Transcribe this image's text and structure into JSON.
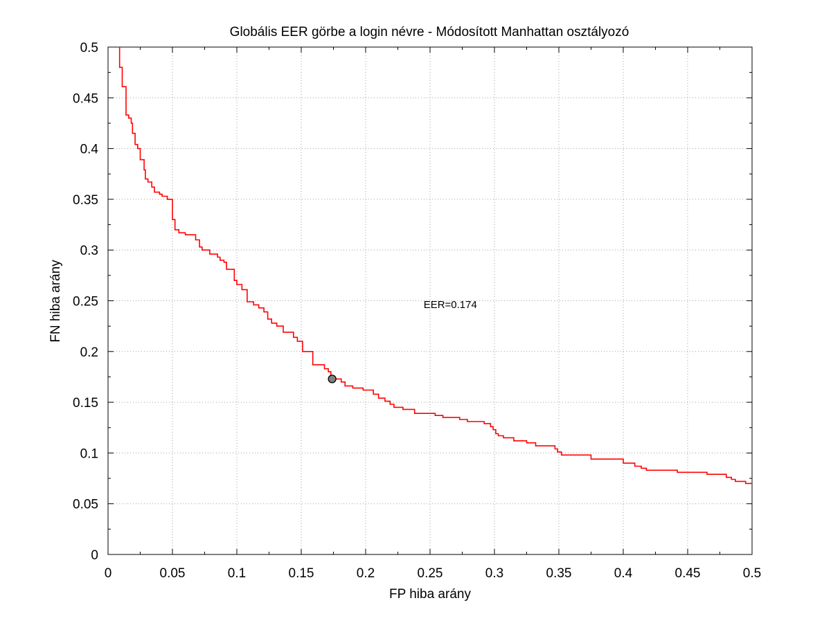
{
  "chart_data": {
    "type": "line",
    "title": "Globális EER görbe a login névre - Módosított Manhattan osztályozó",
    "xlabel": "FP hiba arány",
    "ylabel": "FN hiba arány",
    "xlim": [
      0,
      0.5
    ],
    "ylim": [
      0,
      0.5
    ],
    "grid": true,
    "xticks": [
      "0",
      "0.05",
      "0.1",
      "0.15",
      "0.2",
      "0.25",
      "0.3",
      "0.35",
      "0.4",
      "0.45",
      "0.5"
    ],
    "yticks": [
      "0",
      "0.05",
      "0.1",
      "0.15",
      "0.2",
      "0.25",
      "0.3",
      "0.35",
      "0.4",
      "0.45",
      "0.5"
    ],
    "colors": {
      "series": "#ff0000",
      "marker_fill": "#808080",
      "marker_edge": "#000000",
      "grid": "#a0a0a0"
    },
    "series": [
      {
        "style": "step",
        "points": [
          [
            0.009,
            0.5
          ],
          [
            0.009,
            0.48
          ],
          [
            0.011,
            0.48
          ],
          [
            0.011,
            0.461
          ],
          [
            0.014,
            0.461
          ],
          [
            0.014,
            0.433
          ],
          [
            0.016,
            0.433
          ],
          [
            0.016,
            0.43
          ],
          [
            0.018,
            0.43
          ],
          [
            0.018,
            0.425
          ],
          [
            0.019,
            0.425
          ],
          [
            0.019,
            0.415
          ],
          [
            0.021,
            0.415
          ],
          [
            0.021,
            0.404
          ],
          [
            0.023,
            0.404
          ],
          [
            0.023,
            0.4
          ],
          [
            0.025,
            0.4
          ],
          [
            0.025,
            0.389
          ],
          [
            0.028,
            0.389
          ],
          [
            0.028,
            0.379
          ],
          [
            0.029,
            0.379
          ],
          [
            0.029,
            0.37
          ],
          [
            0.031,
            0.37
          ],
          [
            0.031,
            0.367
          ],
          [
            0.034,
            0.367
          ],
          [
            0.034,
            0.362
          ],
          [
            0.036,
            0.362
          ],
          [
            0.036,
            0.357
          ],
          [
            0.04,
            0.357
          ],
          [
            0.04,
            0.355
          ],
          [
            0.042,
            0.355
          ],
          [
            0.042,
            0.353
          ],
          [
            0.046,
            0.353
          ],
          [
            0.046,
            0.35
          ],
          [
            0.05,
            0.35
          ],
          [
            0.05,
            0.33
          ],
          [
            0.052,
            0.33
          ],
          [
            0.052,
            0.32
          ],
          [
            0.055,
            0.32
          ],
          [
            0.055,
            0.317
          ],
          [
            0.06,
            0.317
          ],
          [
            0.06,
            0.315
          ],
          [
            0.068,
            0.315
          ],
          [
            0.068,
            0.31
          ],
          [
            0.071,
            0.31
          ],
          [
            0.071,
            0.303
          ],
          [
            0.073,
            0.303
          ],
          [
            0.073,
            0.3
          ],
          [
            0.079,
            0.3
          ],
          [
            0.079,
            0.296
          ],
          [
            0.085,
            0.296
          ],
          [
            0.085,
            0.293
          ],
          [
            0.087,
            0.293
          ],
          [
            0.087,
            0.29
          ],
          [
            0.09,
            0.29
          ],
          [
            0.09,
            0.288
          ],
          [
            0.092,
            0.288
          ],
          [
            0.092,
            0.281
          ],
          [
            0.098,
            0.281
          ],
          [
            0.098,
            0.27
          ],
          [
            0.1,
            0.27
          ],
          [
            0.1,
            0.266
          ],
          [
            0.104,
            0.266
          ],
          [
            0.104,
            0.261
          ],
          [
            0.108,
            0.261
          ],
          [
            0.108,
            0.249
          ],
          [
            0.113,
            0.249
          ],
          [
            0.113,
            0.246
          ],
          [
            0.117,
            0.246
          ],
          [
            0.117,
            0.243
          ],
          [
            0.121,
            0.243
          ],
          [
            0.121,
            0.239
          ],
          [
            0.124,
            0.239
          ],
          [
            0.124,
            0.232
          ],
          [
            0.127,
            0.232
          ],
          [
            0.127,
            0.228
          ],
          [
            0.131,
            0.228
          ],
          [
            0.131,
            0.225
          ],
          [
            0.136,
            0.225
          ],
          [
            0.136,
            0.219
          ],
          [
            0.144,
            0.219
          ],
          [
            0.144,
            0.214
          ],
          [
            0.147,
            0.214
          ],
          [
            0.147,
            0.21
          ],
          [
            0.151,
            0.21
          ],
          [
            0.151,
            0.2
          ],
          [
            0.159,
            0.2
          ],
          [
            0.159,
            0.187
          ],
          [
            0.168,
            0.187
          ],
          [
            0.168,
            0.183
          ],
          [
            0.171,
            0.183
          ],
          [
            0.171,
            0.18
          ],
          [
            0.173,
            0.18
          ],
          [
            0.173,
            0.174
          ],
          [
            0.174,
            0.174
          ],
          [
            0.174,
            0.173
          ],
          [
            0.181,
            0.173
          ],
          [
            0.181,
            0.17
          ],
          [
            0.184,
            0.17
          ],
          [
            0.184,
            0.166
          ],
          [
            0.19,
            0.166
          ],
          [
            0.19,
            0.164
          ],
          [
            0.198,
            0.164
          ],
          [
            0.198,
            0.162
          ],
          [
            0.206,
            0.162
          ],
          [
            0.206,
            0.158
          ],
          [
            0.21,
            0.158
          ],
          [
            0.21,
            0.154
          ],
          [
            0.215,
            0.154
          ],
          [
            0.215,
            0.151
          ],
          [
            0.219,
            0.151
          ],
          [
            0.219,
            0.148
          ],
          [
            0.222,
            0.148
          ],
          [
            0.222,
            0.145
          ],
          [
            0.229,
            0.145
          ],
          [
            0.229,
            0.143
          ],
          [
            0.238,
            0.143
          ],
          [
            0.238,
            0.139
          ],
          [
            0.254,
            0.139
          ],
          [
            0.254,
            0.137
          ],
          [
            0.26,
            0.137
          ],
          [
            0.26,
            0.135
          ],
          [
            0.273,
            0.135
          ],
          [
            0.273,
            0.133
          ],
          [
            0.279,
            0.133
          ],
          [
            0.279,
            0.131
          ],
          [
            0.292,
            0.131
          ],
          [
            0.292,
            0.129
          ],
          [
            0.297,
            0.129
          ],
          [
            0.297,
            0.126
          ],
          [
            0.299,
            0.126
          ],
          [
            0.299,
            0.123
          ],
          [
            0.301,
            0.123
          ],
          [
            0.301,
            0.119
          ],
          [
            0.303,
            0.119
          ],
          [
            0.303,
            0.117
          ],
          [
            0.307,
            0.117
          ],
          [
            0.307,
            0.115
          ],
          [
            0.315,
            0.115
          ],
          [
            0.315,
            0.112
          ],
          [
            0.325,
            0.112
          ],
          [
            0.325,
            0.11
          ],
          [
            0.332,
            0.11
          ],
          [
            0.332,
            0.107
          ],
          [
            0.347,
            0.107
          ],
          [
            0.347,
            0.104
          ],
          [
            0.349,
            0.104
          ],
          [
            0.349,
            0.101
          ],
          [
            0.352,
            0.101
          ],
          [
            0.352,
            0.098
          ],
          [
            0.375,
            0.098
          ],
          [
            0.375,
            0.094
          ],
          [
            0.4,
            0.094
          ],
          [
            0.4,
            0.09
          ],
          [
            0.409,
            0.09
          ],
          [
            0.409,
            0.087
          ],
          [
            0.414,
            0.087
          ],
          [
            0.414,
            0.085
          ],
          [
            0.418,
            0.085
          ],
          [
            0.418,
            0.083
          ],
          [
            0.442,
            0.083
          ],
          [
            0.442,
            0.081
          ],
          [
            0.465,
            0.081
          ],
          [
            0.465,
            0.079
          ],
          [
            0.48,
            0.079
          ],
          [
            0.48,
            0.076
          ],
          [
            0.484,
            0.076
          ],
          [
            0.484,
            0.074
          ],
          [
            0.487,
            0.074
          ],
          [
            0.487,
            0.072
          ],
          [
            0.495,
            0.072
          ],
          [
            0.495,
            0.07
          ],
          [
            0.5,
            0.07
          ]
        ]
      }
    ],
    "marker": {
      "x": 0.174,
      "y": 0.173
    },
    "annotation": {
      "text": "EER=0.174",
      "x": 0.245,
      "y": 0.243
    }
  }
}
